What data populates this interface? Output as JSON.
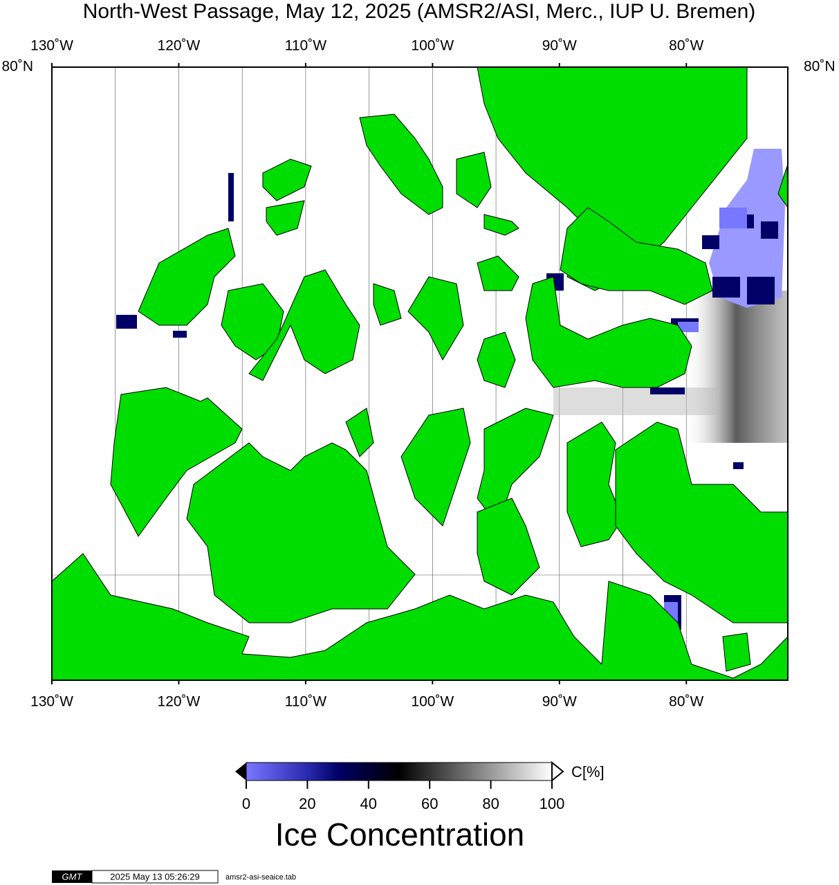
{
  "title": "North-West Passage, May 12, 2025 (AMSR2/ASI, Merc., IUP U. Bremen)",
  "map": {
    "lonlim": [
      -130,
      -72
    ],
    "lon_ticks": [
      {
        "value": -130,
        "label": "130˚W"
      },
      {
        "value": -120,
        "label": "120˚W"
      },
      {
        "value": -110,
        "label": "110˚W"
      },
      {
        "value": -100,
        "label": "100˚W"
      },
      {
        "value": -90,
        "label": "90˚W"
      },
      {
        "value": -80,
        "label": "80˚W"
      }
    ],
    "lat_label": "80˚N"
  },
  "colorbar": {
    "label": "C[%]",
    "range": [
      0,
      100
    ],
    "ticks": [
      0,
      20,
      40,
      60,
      80,
      100
    ],
    "title": "Ice Concentration"
  },
  "footer": {
    "logo": "GMT",
    "timestamp": "2025 May 13 05:26:29",
    "file": "amsr2-asi-seaice.tab"
  }
}
